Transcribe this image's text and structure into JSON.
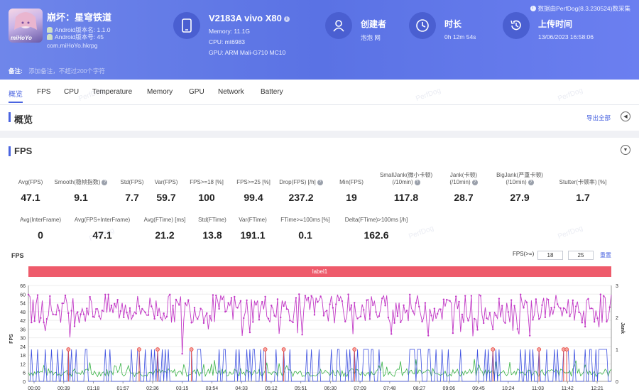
{
  "app": {
    "name": "崩坏：星穹铁道",
    "android_version": "Android版本名: 1.1.0",
    "android_code": "Android版本号: 45",
    "package": "com.miHoYo.hkrpg",
    "icon_text": "miHoYo"
  },
  "device": {
    "name": "V2183A vivo X80",
    "memory": "Memory: 11.1G",
    "cpu": "CPU: mt6983",
    "gpu": "GPU: ARM Mali-G710 MC10"
  },
  "creator": {
    "title": "创建者",
    "value": "泡泡 网"
  },
  "duration": {
    "title": "时长",
    "value": "0h 12m 54s"
  },
  "upload": {
    "title": "上传时间",
    "value": "13/06/2023 16:58:06"
  },
  "perfdog_note": "数据由PerfDog(8.3.230524)数采集",
  "note": {
    "label": "备注:",
    "placeholder": "添加备注，不超过200个字符"
  },
  "tabs": [
    "概览",
    "FPS",
    "CPU",
    "Temperature",
    "Memory",
    "GPU",
    "Network",
    "Battery"
  ],
  "overview": {
    "title": "概览",
    "export": "导出全部"
  },
  "fps_section": {
    "title": "FPS"
  },
  "metrics_row1": [
    {
      "label": "Avg(FPS)",
      "value": "47.1",
      "help": false
    },
    {
      "label": "Smooth(稳帧指数)",
      "value": "9.1",
      "help": true
    },
    {
      "label": "Std(FPS)",
      "value": "7.7",
      "help": false
    },
    {
      "label": "Var(FPS)",
      "value": "59.7",
      "help": false
    },
    {
      "label": "FPS>=18 [%]",
      "value": "100",
      "help": false
    },
    {
      "label": "FPS>=25 [%]",
      "value": "99.4",
      "help": false
    },
    {
      "label": "Drop(FPS) [/h]",
      "value": "237.2",
      "help": true
    },
    {
      "label": "Min(FPS)",
      "value": "19",
      "help": false
    },
    {
      "label": "SmallJank(微小卡顿)\n(/10min)",
      "value": "117.8",
      "help": true
    },
    {
      "label": "Jank(卡顿)\n(/10min)",
      "value": "28.7",
      "help": true
    },
    {
      "label": "BigJank(严重卡顿)\n(/10min)",
      "value": "27.9",
      "help": true
    },
    {
      "label": "Stutter(卡顿率) [%]",
      "value": "1.7",
      "help": false
    }
  ],
  "metrics_row2": [
    {
      "label": "Avg(InterFrame)",
      "value": "0",
      "help": false
    },
    {
      "label": "Avg(FPS+InterFrame)",
      "value": "47.1",
      "help": false
    },
    {
      "label": "Avg(FTime) [ms]",
      "value": "21.2",
      "help": false
    },
    {
      "label": "Std(FTime)",
      "value": "13.8",
      "help": false
    },
    {
      "label": "Var(FTime)",
      "value": "191.1",
      "help": false
    },
    {
      "label": "FTime>=100ms [%]",
      "value": "0.1",
      "help": false
    },
    {
      "label": "Delta(FTime)>100ms [/h]",
      "value": "162.6",
      "help": false
    }
  ],
  "fps_controls": {
    "label": "FPS(>=)",
    "value1": "18",
    "value2": "25",
    "reset": "重置"
  },
  "chart_data": {
    "type": "line",
    "title": "FPS",
    "label_band": "label1",
    "ylabel_left": "FPS",
    "ylabel_right": "Jank",
    "y_left_ticks": [
      "66",
      "60",
      "54",
      "48",
      "42",
      "36",
      "30",
      "24",
      "18",
      "12",
      "6",
      "0"
    ],
    "y_left_range": [
      0,
      66
    ],
    "y_right_ticks": [
      "3",
      "2",
      "1",
      "0"
    ],
    "y_right_range": [
      0,
      3
    ],
    "x_ticks": [
      "00:00",
      "00:39",
      "01:18",
      "01:57",
      "02:36",
      "03:15",
      "03:54",
      "04:33",
      "05:12",
      "05:51",
      "06:30",
      "07:09",
      "07:48",
      "08:27",
      "09:06",
      "09:45",
      "10:24",
      "11:03",
      "11:42",
      "12:21"
    ],
    "colors": {
      "fps": "#c23ac6",
      "jank": "#3c4fe0",
      "bigjank": "#e8483f",
      "ftime": "#38b245"
    },
    "series_fps_summary": {
      "avg": 47.1,
      "min": 19,
      "max": 60
    }
  },
  "watermark": "PerfDog"
}
